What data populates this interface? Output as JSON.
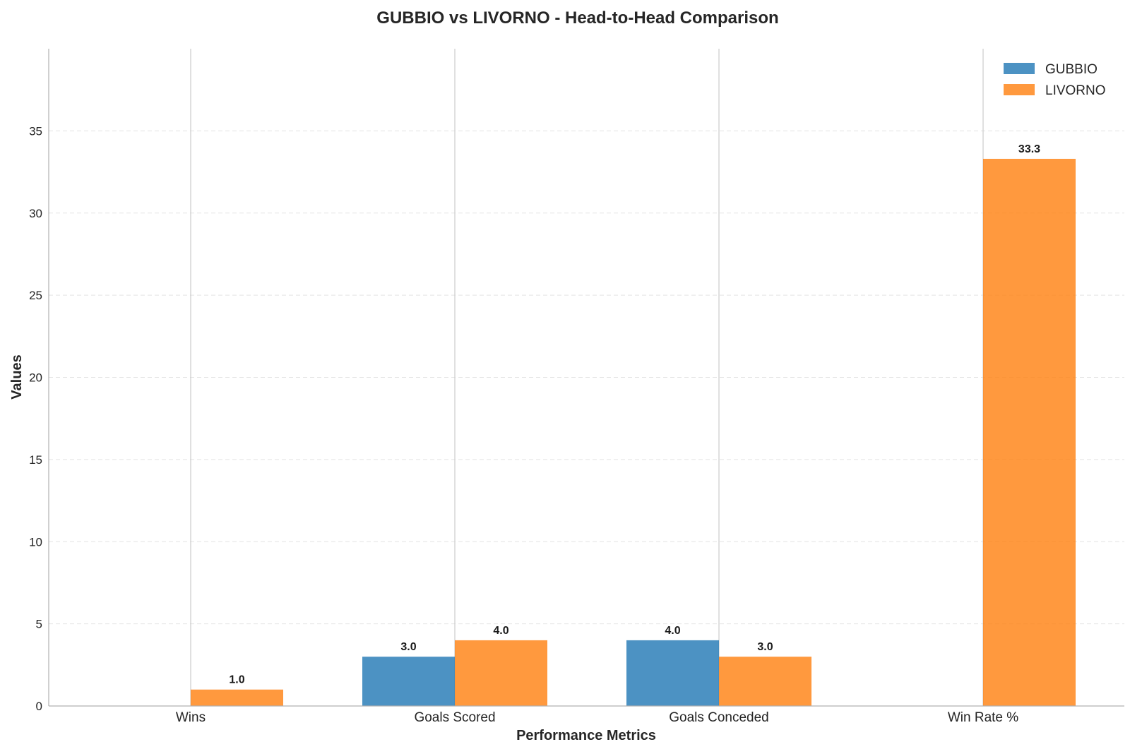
{
  "chart_data": {
    "type": "bar",
    "title": "GUBBIO vs LIVORNO - Head-to-Head Comparison",
    "xlabel": "Performance Metrics",
    "ylabel": "Values",
    "categories": [
      "Wins",
      "Goals Scored",
      "Goals Conceded",
      "Win Rate %"
    ],
    "series": [
      {
        "name": "GUBBIO",
        "color": "#1f77b4",
        "values": [
          0.0,
          3.0,
          4.0,
          0.0
        ]
      },
      {
        "name": "LIVORNO",
        "color": "#ff7f0e",
        "values": [
          1.0,
          4.0,
          3.0,
          33.3
        ]
      }
    ],
    "data_labels": [
      [
        null,
        "3.0",
        "4.0",
        null
      ],
      [
        "1.0",
        "4.0",
        "3.0",
        "33.3"
      ]
    ],
    "ylim": [
      0,
      40
    ],
    "yticks": [
      0,
      5,
      10,
      15,
      20,
      25,
      30,
      35
    ],
    "ytick_labels": [
      "0",
      "5",
      "10",
      "15",
      "20",
      "25",
      "30",
      "35"
    ],
    "grid": {
      "horizontal": "dashed",
      "vertical_at_categories": true
    },
    "legend_position": "top-right"
  }
}
